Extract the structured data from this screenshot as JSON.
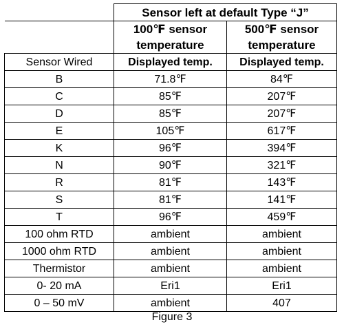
{
  "table": {
    "title": "Sensor left at default Type “J”",
    "col1_header_line1": "100℉ sensor",
    "col1_header_line2": "temperature",
    "col2_header_line1": "500℉ sensor",
    "col2_header_line2": "temperature",
    "row_label_header": "Sensor Wired",
    "col1_subheader": "Displayed temp.",
    "col2_subheader": "Displayed temp.",
    "rows": [
      {
        "sensor": "B",
        "t100": "71.8℉",
        "t500": "84℉"
      },
      {
        "sensor": "C",
        "t100": "85℉",
        "t500": "207℉"
      },
      {
        "sensor": "D",
        "t100": "85℉",
        "t500": "207℉"
      },
      {
        "sensor": "E",
        "t100": "105℉",
        "t500": "617℉"
      },
      {
        "sensor": "K",
        "t100": "96℉",
        "t500": "394℉"
      },
      {
        "sensor": "N",
        "t100": "90℉",
        "t500": "321℉"
      },
      {
        "sensor": "R",
        "t100": "81℉",
        "t500": "143℉"
      },
      {
        "sensor": "S",
        "t100": "81℉",
        "t500": "141℉"
      },
      {
        "sensor": "T",
        "t100": "96℉",
        "t500": "459℉"
      },
      {
        "sensor": "100 ohm RTD",
        "t100": "ambient",
        "t500": "ambient"
      },
      {
        "sensor": "1000 ohm RTD",
        "t100": "ambient",
        "t500": "ambient"
      },
      {
        "sensor": "Thermistor",
        "t100": "ambient",
        "t500": "ambient"
      },
      {
        "sensor": "0- 20 mA",
        "t100": "Eri1",
        "t500": "Eri1"
      },
      {
        "sensor": "0 – 50 mV",
        "t100": "ambient",
        "t500": "407"
      }
    ]
  },
  "caption": "Figure 3"
}
